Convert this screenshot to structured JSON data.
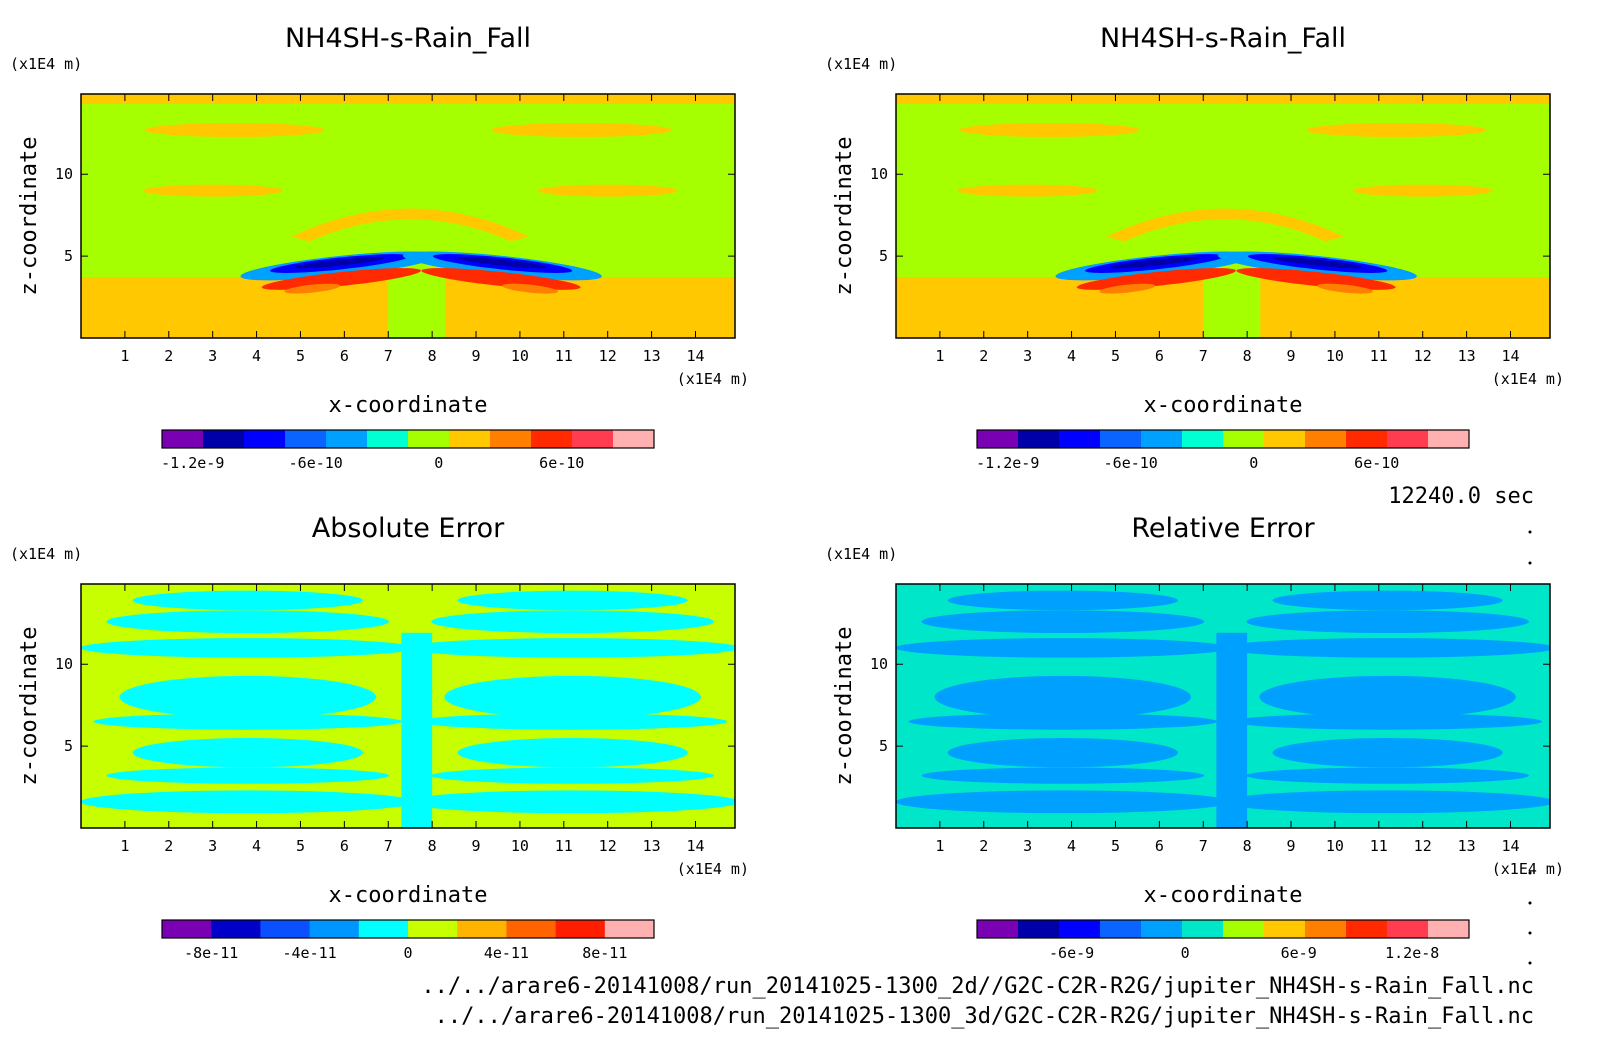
{
  "footer": {
    "time": "12240.0 sec",
    "path1": "../../arare6-20141008/run_20141025-1300_2d//G2C-C2R-R2G/jupiter_NH4SH-s-Rain_Fall.nc",
    "path2": "../../arare6-20141008/run_20141025-1300_3d/G2C-C2R-R2G/jupiter_NH4SH-s-Rain_Fall.nc"
  },
  "chart_data": [
    {
      "type": "heatmap",
      "title": "NH4SH-s-Rain_Fall",
      "xlabel": "x-coordinate",
      "ylabel": "z-coordinate",
      "x_unit": "(x1E4 m)",
      "y_unit": "(x1E4 m)",
      "xlim": [
        0,
        14.9
      ],
      "ylim": [
        0,
        14.9
      ],
      "xticks": [
        "1",
        "2",
        "3",
        "4",
        "5",
        "6",
        "7",
        "8",
        "9",
        "10",
        "11",
        "12",
        "13",
        "14"
      ],
      "yticks": [
        "5",
        "10"
      ],
      "background_color": "#a6ff00",
      "colorbar": {
        "levels": 12,
        "colors": [
          "#7a00b4",
          "#0000a8",
          "#0000ff",
          "#0a64ff",
          "#00a0ff",
          "#00ffd2",
          "#a6ff00",
          "#ffc800",
          "#ff8000",
          "#ff2a00",
          "#ff3c50",
          "#ffb0b0"
        ],
        "ticks": [
          {
            "label": "-1.2e-9",
            "value": -1.2e-09
          },
          {
            "label": "-6e-10",
            "value": -6e-10
          },
          {
            "label": "0",
            "value": 0
          },
          {
            "label": "6e-10",
            "value": 6e-10
          }
        ],
        "range": [
          -1.35e-09,
          1.05e-09
        ]
      }
    },
    {
      "type": "heatmap",
      "title": "NH4SH-s-Rain_Fall",
      "xlabel": "x-coordinate",
      "ylabel": "z-coordinate",
      "x_unit": "(x1E4 m)",
      "y_unit": "(x1E4 m)",
      "xlim": [
        0,
        14.9
      ],
      "ylim": [
        0,
        14.9
      ],
      "xticks": [
        "1",
        "2",
        "3",
        "4",
        "5",
        "6",
        "7",
        "8",
        "9",
        "10",
        "11",
        "12",
        "13",
        "14"
      ],
      "yticks": [
        "5",
        "10"
      ],
      "background_color": "#a6ff00",
      "colorbar": {
        "levels": 12,
        "colors": [
          "#7a00b4",
          "#0000a8",
          "#0000ff",
          "#0a64ff",
          "#00a0ff",
          "#00ffd2",
          "#a6ff00",
          "#ffc800",
          "#ff8000",
          "#ff2a00",
          "#ff3c50",
          "#ffb0b0"
        ],
        "ticks": [
          {
            "label": "-1.2e-9",
            "value": -1.2e-09
          },
          {
            "label": "-6e-10",
            "value": -6e-10
          },
          {
            "label": "0",
            "value": 0
          },
          {
            "label": "6e-10",
            "value": 6e-10
          }
        ],
        "range": [
          -1.35e-09,
          1.05e-09
        ]
      }
    },
    {
      "type": "heatmap",
      "title": "Absolute Error",
      "xlabel": "x-coordinate",
      "ylabel": "z-coordinate",
      "x_unit": "(x1E4 m)",
      "y_unit": "(x1E4 m)",
      "xlim": [
        0,
        14.9
      ],
      "ylim": [
        0,
        14.9
      ],
      "xticks": [
        "1",
        "2",
        "3",
        "4",
        "5",
        "6",
        "7",
        "8",
        "9",
        "10",
        "11",
        "12",
        "13",
        "14"
      ],
      "yticks": [
        "5",
        "10"
      ],
      "background_color": "#c8ff00",
      "colorbar": {
        "levels": 10,
        "colors": [
          "#7a00b4",
          "#0000c8",
          "#0a50ff",
          "#0096ff",
          "#00ffff",
          "#c8ff00",
          "#ffb400",
          "#ff6400",
          "#ff1e00",
          "#ffb0b0"
        ],
        "ticks": [
          {
            "label": "-8e-11",
            "value": -8e-11
          },
          {
            "label": "-4e-11",
            "value": -4e-11
          },
          {
            "label": "0",
            "value": 0
          },
          {
            "label": "4e-11",
            "value": 4e-11
          },
          {
            "label": "8e-11",
            "value": 8e-11
          }
        ],
        "range": [
          -1e-10,
          1e-10
        ]
      }
    },
    {
      "type": "heatmap",
      "title": "Relative Error",
      "xlabel": "x-coordinate",
      "ylabel": "z-coordinate",
      "x_unit": "(x1E4 m)",
      "y_unit": "(x1E4 m)",
      "xlim": [
        0,
        14.9
      ],
      "ylim": [
        0,
        14.9
      ],
      "xticks": [
        "1",
        "2",
        "3",
        "4",
        "5",
        "6",
        "7",
        "8",
        "9",
        "10",
        "11",
        "12",
        "13",
        "14"
      ],
      "yticks": [
        "5",
        "10"
      ],
      "background_color": "#00e6c8",
      "colorbar": {
        "levels": 12,
        "colors": [
          "#7a00b4",
          "#0000a8",
          "#0000ff",
          "#0a64ff",
          "#00a0ff",
          "#00e6c8",
          "#a6ff00",
          "#ffc800",
          "#ff8000",
          "#ff2a00",
          "#ff3c50",
          "#ffb0b0"
        ],
        "ticks": [
          {
            "label": "-6e-9",
            "value": -6e-09
          },
          {
            "label": "0",
            "value": 0
          },
          {
            "label": "6e-9",
            "value": 6e-09
          },
          {
            "label": "1.2e-8",
            "value": 1.2e-08
          }
        ],
        "range": [
          -1.1e-08,
          1.5e-08
        ]
      }
    }
  ]
}
